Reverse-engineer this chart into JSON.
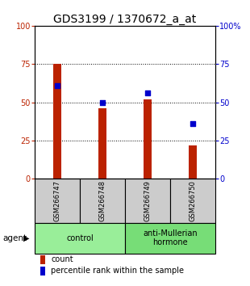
{
  "title": "GDS3199 / 1370672_a_at",
  "samples": [
    "GSM266747",
    "GSM266748",
    "GSM266749",
    "GSM266750"
  ],
  "counts": [
    75,
    46,
    52,
    22
  ],
  "percentiles": [
    61,
    50,
    56,
    36
  ],
  "ylim": [
    0,
    100
  ],
  "yticks": [
    0,
    25,
    50,
    75,
    100
  ],
  "bar_color": "#bb2200",
  "dot_color": "#0000cc",
  "bar_width": 0.18,
  "groups": [
    {
      "label": "control",
      "indices": [
        0,
        1
      ],
      "color": "#99ee99"
    },
    {
      "label": "anti-Mullerian\nhormone",
      "indices": [
        2,
        3
      ],
      "color": "#77dd77"
    }
  ],
  "agent_label": "agent",
  "legend_count": "count",
  "legend_pct": "percentile rank within the sample",
  "sample_bg": "#cccccc",
  "title_fontsize": 10,
  "tick_fontsize": 7,
  "sample_fontsize": 6,
  "group_fontsize": 7,
  "legend_fontsize": 7
}
